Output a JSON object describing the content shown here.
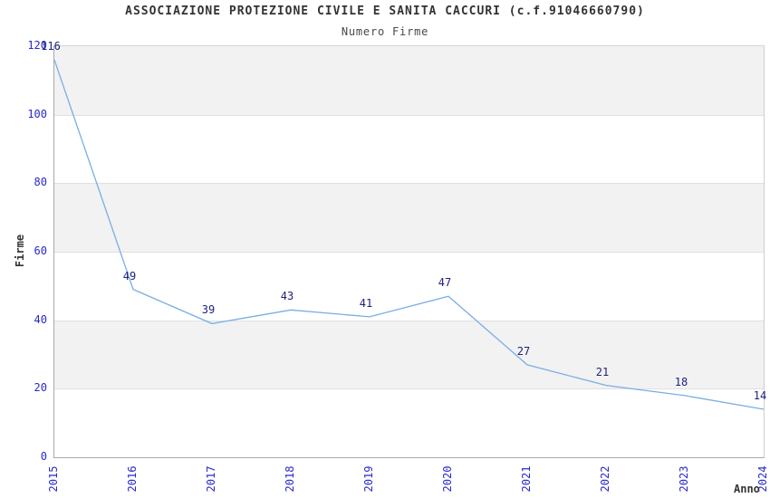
{
  "chart_data": {
    "type": "line",
    "title": "ASSOCIAZIONE PROTEZIONE CIVILE E SANITA CACCURI (c.f.91046660790)",
    "subtitle": "Numero Firme",
    "xlabel": "Anno",
    "ylabel": "Firme",
    "categories": [
      "2015",
      "2016",
      "2017",
      "2018",
      "2019",
      "2020",
      "2021",
      "2022",
      "2023",
      "2024"
    ],
    "values": [
      116,
      49,
      39,
      43,
      41,
      47,
      27,
      21,
      18,
      14
    ],
    "ylim": [
      0,
      120
    ],
    "yticks": [
      0,
      20,
      40,
      60,
      80,
      100,
      120
    ],
    "grid": "horizontal-only",
    "legend": "none",
    "banded_background": true,
    "colors": {
      "line": "#78aee6",
      "tick_label": "#2929cc",
      "data_label": "#202080",
      "band_fill": "#f2f2f2",
      "gridline": "#e0e0e0",
      "title_text": "#333333"
    }
  }
}
